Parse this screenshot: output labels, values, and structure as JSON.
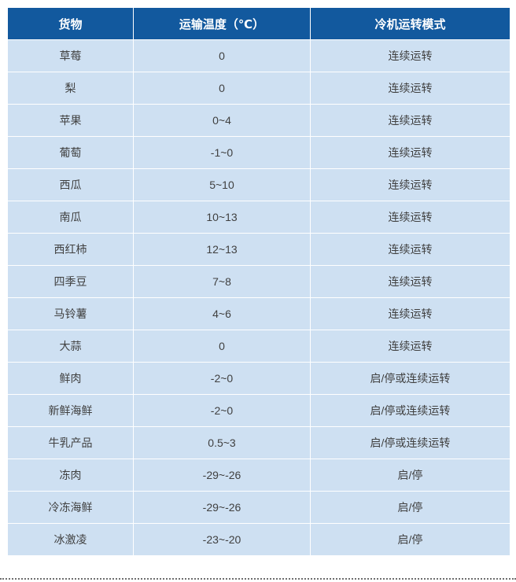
{
  "colors": {
    "page_bg": "#ffffff",
    "header_bg": "#12599e",
    "header_text": "#ffffff",
    "row_bg": "#cee0f2",
    "row_text": "#404040",
    "divider": "#6e6e6e"
  },
  "table": {
    "columns": [
      "货物",
      "运输温度（℃）",
      "冷机运转模式"
    ],
    "rows": [
      [
        "草莓",
        "0",
        "连续运转"
      ],
      [
        "梨",
        "0",
        "连续运转"
      ],
      [
        "苹果",
        "0~4",
        "连续运转"
      ],
      [
        "葡萄",
        "-1~0",
        "连续运转"
      ],
      [
        "西瓜",
        "5~10",
        "连续运转"
      ],
      [
        "南瓜",
        "10~13",
        "连续运转"
      ],
      [
        "西红柿",
        "12~13",
        "连续运转"
      ],
      [
        "四季豆",
        "7~8",
        "连续运转"
      ],
      [
        "马铃薯",
        "4~6",
        "连续运转"
      ],
      [
        "大蒜",
        "0",
        "连续运转"
      ],
      [
        "鲜肉",
        "-2~0",
        "启/停或连续运转"
      ],
      [
        "新鲜海鲜",
        "-2~0",
        "启/停或连续运转"
      ],
      [
        "牛乳产品",
        "0.5~3",
        "启/停或连续运转"
      ],
      [
        "冻肉",
        "-29~-26",
        "启/停"
      ],
      [
        "冷冻海鲜",
        "-29~-26",
        "启/停"
      ],
      [
        "冰激凌",
        "-23~-20",
        "启/停"
      ]
    ]
  }
}
